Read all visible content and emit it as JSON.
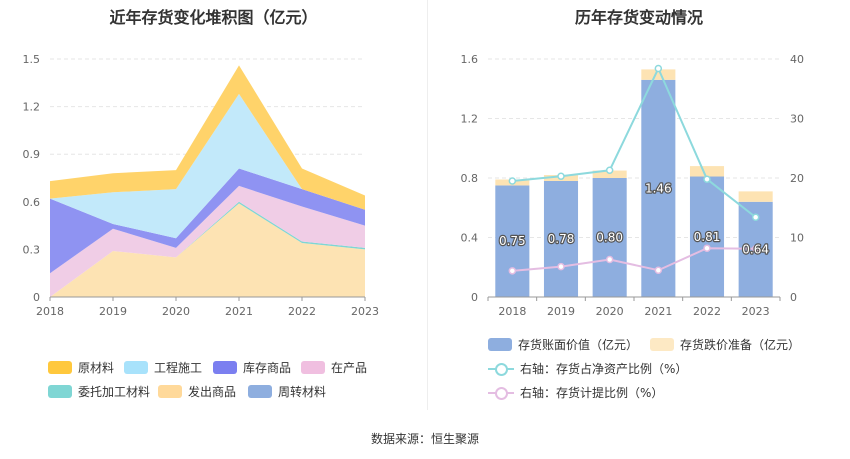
{
  "left": {
    "title": "近年存货变化堆积图（亿元）",
    "legend": [
      {
        "name": "原材料",
        "color": "#ffc83d"
      },
      {
        "name": "工程施工",
        "color": "#a8e2fb"
      },
      {
        "name": "库存商品",
        "color": "#7b7ff0"
      },
      {
        "name": "在产品",
        "color": "#f0bfe0"
      },
      {
        "name": "委托加工材料",
        "color": "#7fd6d4"
      },
      {
        "name": "发出商品",
        "color": "#ffd99a"
      },
      {
        "name": "周转材料",
        "color": "#8eaedf"
      }
    ]
  },
  "right": {
    "title": "历年存货变动情况",
    "legend": [
      {
        "name": "存货账面价值（亿元）",
        "color": "#8eaedf",
        "kind": "box"
      },
      {
        "name": "存货跌价准备（亿元）",
        "color": "#fde9c4",
        "kind": "box"
      },
      {
        "name": "右轴：存货占净资产比例（%）",
        "color": "#8dd9dd",
        "kind": "line"
      },
      {
        "name": "右轴：存货计提比例（%）",
        "color": "#e4bde2",
        "kind": "line"
      }
    ]
  },
  "chart_data": [
    {
      "type": "area",
      "title": "近年存货变化堆积图（亿元）",
      "stacked": true,
      "categories": [
        "2018",
        "2019",
        "2020",
        "2021",
        "2022",
        "2023"
      ],
      "ylim": [
        0,
        1.5
      ],
      "yticks": [
        "0",
        "0.3",
        "0.6",
        "0.9",
        "1.2",
        "1.5"
      ],
      "grid": true,
      "legend_position": "bottom",
      "series": [
        {
          "name": "发出商品",
          "color": "#fde3b3",
          "values": [
            0.0,
            0.29,
            0.25,
            0.59,
            0.34,
            0.3
          ]
        },
        {
          "name": "委托加工材料",
          "color": "#7fd6d4",
          "values": [
            0.0,
            0.0,
            0.0,
            0.01,
            0.01,
            0.01
          ]
        },
        {
          "name": "在产品",
          "color": "#f0cde6",
          "values": [
            0.15,
            0.14,
            0.06,
            0.1,
            0.22,
            0.14
          ]
        },
        {
          "name": "库存商品",
          "color": "#8f93f2",
          "values": [
            0.47,
            0.03,
            0.06,
            0.11,
            0.11,
            0.1
          ]
        },
        {
          "name": "工程施工",
          "color": "#c2e9fa",
          "values": [
            0.0,
            0.2,
            0.31,
            0.47,
            0.0,
            0.0
          ]
        },
        {
          "name": "原材料",
          "color": "#ffd36a",
          "values": [
            0.11,
            0.12,
            0.12,
            0.18,
            0.13,
            0.09
          ]
        }
      ]
    },
    {
      "type": "bar",
      "title": "历年存货变动情况",
      "stacked": true,
      "categories": [
        "2018",
        "2019",
        "2020",
        "2021",
        "2022",
        "2023"
      ],
      "ylim": [
        0,
        1.6
      ],
      "yticks": [
        "0",
        "0.4",
        "0.8",
        "1.2",
        "1.6"
      ],
      "y2lim": [
        0,
        40
      ],
      "y2ticks": [
        "0",
        "10",
        "20",
        "30",
        "40"
      ],
      "grid": true,
      "legend_position": "bottom",
      "series": [
        {
          "name": "存货账面价值（亿元）",
          "axis": "left",
          "type": "bar",
          "color": "#8eaedf",
          "values": [
            0.75,
            0.78,
            0.8,
            1.46,
            0.81,
            0.64
          ],
          "labels": [
            "0.75",
            "0.78",
            "0.80",
            "1.46",
            "0.81",
            "0.64"
          ]
        },
        {
          "name": "存货跌价准备（亿元）",
          "axis": "left",
          "type": "bar",
          "color": "#fde3b3",
          "values": [
            0.04,
            0.04,
            0.05,
            0.07,
            0.07,
            0.07
          ]
        },
        {
          "name": "右轴：存货占净资产比例（%）",
          "axis": "right",
          "type": "line",
          "color": "#8dd9dd",
          "values": [
            19.5,
            20.3,
            21.3,
            38.4,
            19.8,
            13.4
          ]
        },
        {
          "name": "右轴：存货计提比例（%）",
          "axis": "right",
          "type": "line",
          "color": "#e4bde2",
          "values": [
            4.4,
            5.1,
            6.3,
            4.5,
            8.2,
            8.1
          ]
        }
      ]
    }
  ],
  "footer": "数据来源：恒生聚源"
}
